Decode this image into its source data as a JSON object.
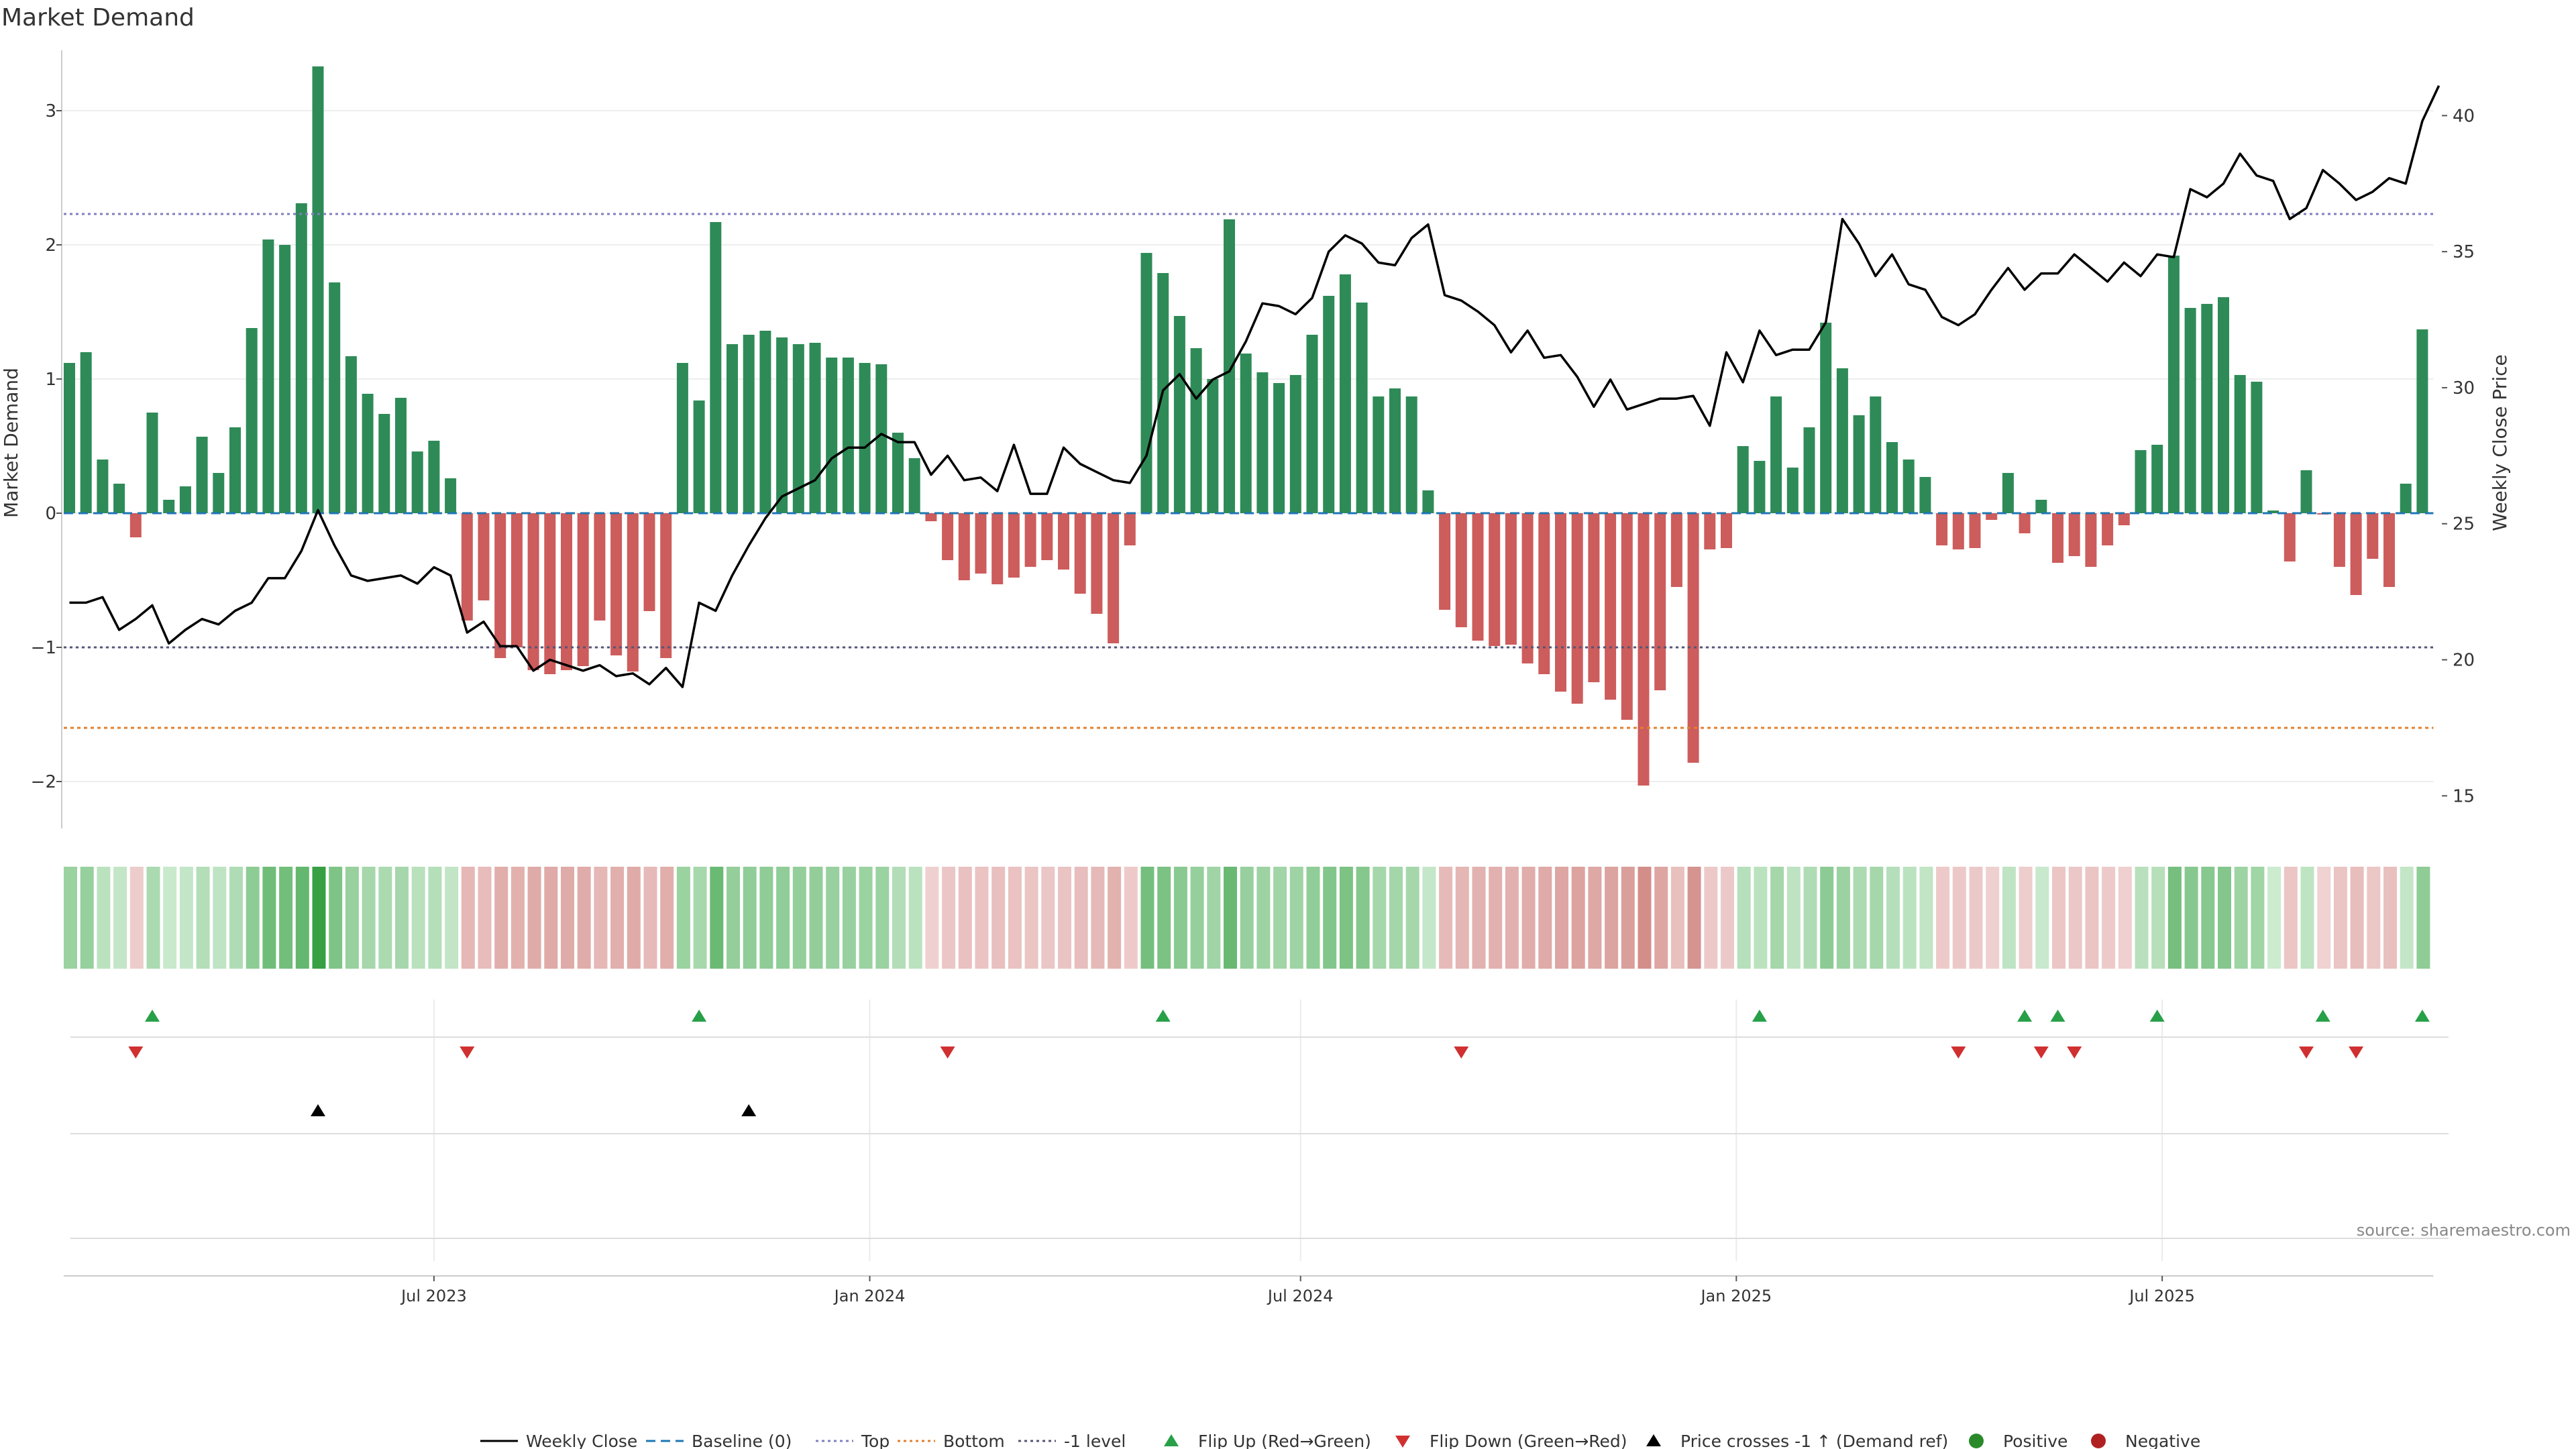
{
  "chart_data": {
    "type": "bar",
    "title": "Market Demand",
    "ylabel_left": "Market Demand",
    "ylabel_right": "Weekly Close Price",
    "source": "source: sharemaestro.com",
    "ylim_left": [
      -2.35,
      3.45
    ],
    "ylim_right": [
      13.8,
      42.4
    ],
    "left_ticks": [
      "3",
      "2",
      "1",
      "0",
      "−1",
      "−2"
    ],
    "left_tick_values": [
      3,
      2,
      1,
      0,
      -1,
      -2
    ],
    "right_ticks": [
      "40",
      "35",
      "30",
      "25",
      "20",
      "15"
    ],
    "right_tick_values": [
      40,
      35,
      30,
      25,
      20,
      15
    ],
    "x_ticks": [
      "Jul 2023",
      "Jan 2024",
      "Jul 2024",
      "Jan 2025",
      "Jul 2025"
    ],
    "x_tick_weeks": [
      22,
      48.3,
      74.3,
      100.6,
      126.3
    ],
    "reference_lines": {
      "top": 2.23,
      "bottom": -1.6,
      "minus_one": -1.0,
      "baseline": 0
    },
    "demand": [
      1.12,
      1.2,
      0.4,
      0.22,
      -0.18,
      0.75,
      0.1,
      0.2,
      0.57,
      0.3,
      0.64,
      1.38,
      2.04,
      2.0,
      2.31,
      3.33,
      1.72,
      1.17,
      0.89,
      0.74,
      0.86,
      0.46,
      0.54,
      0.26,
      -0.8,
      -0.65,
      -1.08,
      -1.0,
      -1.17,
      -1.2,
      -1.17,
      -1.14,
      -0.8,
      -1.06,
      -1.18,
      -0.73,
      -1.08,
      1.12,
      0.84,
      2.17,
      1.26,
      1.33,
      1.36,
      1.31,
      1.26,
      1.27,
      1.16,
      1.16,
      1.12,
      1.11,
      0.6,
      0.41,
      -0.06,
      -0.35,
      -0.5,
      -0.45,
      -0.53,
      -0.48,
      -0.4,
      -0.35,
      -0.42,
      -0.6,
      -0.75,
      -0.97,
      -0.24,
      1.94,
      1.79,
      1.47,
      1.23,
      1.0,
      2.19,
      1.19,
      1.05,
      0.97,
      1.03,
      1.33,
      1.62,
      1.78,
      1.57,
      0.87,
      0.93,
      0.87,
      0.17,
      -0.72,
      -0.85,
      -0.95,
      -0.99,
      -0.98,
      -1.12,
      -1.2,
      -1.33,
      -1.42,
      -1.26,
      -1.39,
      -1.54,
      -2.03,
      -1.32,
      -0.55,
      -1.86,
      -0.27,
      -0.26,
      0.5,
      0.39,
      0.87,
      0.34,
      0.64,
      1.42,
      1.08,
      0.73,
      0.87,
      0.53,
      0.4,
      0.27,
      -0.24,
      -0.27,
      -0.26,
      -0.05,
      0.3,
      -0.15,
      0.1,
      -0.37,
      -0.32,
      -0.4,
      -0.24,
      -0.09,
      0.47,
      0.51,
      1.92,
      1.53,
      1.56,
      1.61,
      1.03,
      0.98,
      0.02,
      -0.36,
      0.32,
      -0.01,
      -0.4,
      -0.61,
      -0.34,
      -0.55,
      0.22,
      1.37
    ],
    "close": [
      22.1,
      22.1,
      22.3,
      21.1,
      21.5,
      22.0,
      20.6,
      21.1,
      21.5,
      21.3,
      21.8,
      22.1,
      23.0,
      23.0,
      24.0,
      25.5,
      24.2,
      23.1,
      22.9,
      23.0,
      23.1,
      22.8,
      23.4,
      23.1,
      21.0,
      21.4,
      20.5,
      20.5,
      19.6,
      20.0,
      19.8,
      19.6,
      19.8,
      19.4,
      19.5,
      19.1,
      19.7,
      19.0,
      22.1,
      21.8,
      23.1,
      24.2,
      25.2,
      26.0,
      26.3,
      26.6,
      27.4,
      27.8,
      27.8,
      28.3,
      28.0,
      28.0,
      26.8,
      27.5,
      26.6,
      26.7,
      26.2,
      27.9,
      26.1,
      26.1,
      27.8,
      27.2,
      26.9,
      26.6,
      26.5,
      27.5,
      29.9,
      30.5,
      29.6,
      30.3,
      30.6,
      31.7,
      33.1,
      33.0,
      32.7,
      33.3,
      35.0,
      35.6,
      35.3,
      34.6,
      34.5,
      35.5,
      36.0,
      33.4,
      33.2,
      32.8,
      32.3,
      31.3,
      32.1,
      31.1,
      31.2,
      30.4,
      29.3,
      30.3,
      29.2,
      29.4,
      29.6,
      29.6,
      29.7,
      28.6,
      31.3,
      30.2,
      32.1,
      31.2,
      31.4,
      31.4,
      32.4,
      36.2,
      35.3,
      34.1,
      34.9,
      33.8,
      33.6,
      32.6,
      32.3,
      32.7,
      33.6,
      34.4,
      33.6,
      34.2,
      34.2,
      34.9,
      34.4,
      33.9,
      34.6,
      34.1,
      34.9,
      34.8,
      37.3,
      37.0,
      37.5,
      38.6,
      37.8,
      37.6,
      36.2,
      36.6,
      38.0,
      37.5,
      36.9,
      37.2,
      37.7,
      37.5,
      39.8,
      41.1
    ],
    "flip_up_weeks": [
      5,
      38,
      66,
      102,
      118,
      120,
      126,
      136,
      142
    ],
    "flip_down_weeks": [
      4,
      24,
      53,
      84,
      114,
      119,
      121,
      135,
      138
    ],
    "price_cross_weeks": [
      15,
      41
    ],
    "legend": [
      {
        "label": "Weekly Close",
        "marker": "line",
        "color": "#000000"
      },
      {
        "label": "Baseline (0)",
        "marker": "dash",
        "color": "#1f77b4"
      },
      {
        "label": "Top",
        "marker": "dot",
        "color": "#7f7fbf"
      },
      {
        "label": "Bottom",
        "marker": "dot",
        "color": "#e08030"
      },
      {
        "label": "-1 level",
        "marker": "dot",
        "color": "#555577"
      },
      {
        "label": "Flip Up (Red→Green)",
        "marker": "tri-up",
        "color": "#27a048"
      },
      {
        "label": "Flip Down (Green→Red)",
        "marker": "tri-down",
        "color": "#d03030"
      },
      {
        "label": "Price crosses -1 ↑ (Demand ref)",
        "marker": "tri-up",
        "color": "#000000"
      },
      {
        "label": "Positive",
        "marker": "circle",
        "color": "#2a8a2a"
      },
      {
        "label": "Negative",
        "marker": "circle",
        "color": "#b02020"
      }
    ],
    "colors": {
      "positive": "#2e8b57",
      "negative": "#cd5c5c",
      "close": "#000000"
    }
  }
}
